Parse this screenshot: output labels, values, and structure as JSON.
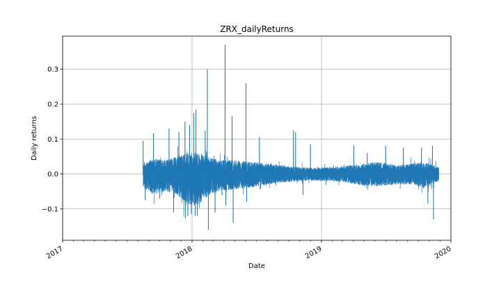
{
  "chart_data": {
    "type": "line",
    "title": "ZRX_dailyReturns",
    "xlabel": "Date",
    "ylabel": "Daily returns",
    "xlim": [
      "2017-01-01",
      "2020-01-01"
    ],
    "ylim": [
      -0.19,
      0.395
    ],
    "x_ticks": [
      "2017",
      "2018",
      "2019",
      "2020"
    ],
    "y_ticks": [
      -0.1,
      0.0,
      0.1,
      0.2,
      0.3
    ],
    "y_tick_labels": [
      "−0.1",
      "0.0",
      "0.1",
      "0.2",
      "0.3"
    ],
    "grid": true,
    "series": [
      {
        "color": "#1f77b4",
        "x_range": [
          "2017-08-16",
          "2019-11-28"
        ],
        "envelope": [
          {
            "x": "2017-08-16",
            "high": 0.03,
            "low": -0.04
          },
          {
            "x": "2017-09-15",
            "high": 0.045,
            "low": -0.06
          },
          {
            "x": "2017-10-20",
            "high": 0.04,
            "low": -0.05
          },
          {
            "x": "2017-11-20",
            "high": 0.05,
            "low": -0.06
          },
          {
            "x": "2017-12-20",
            "high": 0.06,
            "low": -0.09
          },
          {
            "x": "2018-01-20",
            "high": 0.06,
            "low": -0.09
          },
          {
            "x": "2018-02-20",
            "high": 0.05,
            "low": -0.06
          },
          {
            "x": "2018-03-20",
            "high": 0.04,
            "low": -0.05
          },
          {
            "x": "2018-05-01",
            "high": 0.04,
            "low": -0.045
          },
          {
            "x": "2018-06-15",
            "high": 0.035,
            "low": -0.04
          },
          {
            "x": "2018-08-01",
            "high": 0.03,
            "low": -0.03
          },
          {
            "x": "2018-09-15",
            "high": 0.025,
            "low": -0.025
          },
          {
            "x": "2018-11-01",
            "high": 0.02,
            "low": -0.02
          },
          {
            "x": "2018-12-15",
            "high": 0.018,
            "low": -0.02
          },
          {
            "x": "2019-02-01",
            "high": 0.02,
            "low": -0.02
          },
          {
            "x": "2019-03-15",
            "high": 0.025,
            "low": -0.025
          },
          {
            "x": "2019-05-01",
            "high": 0.03,
            "low": -0.035
          },
          {
            "x": "2019-06-15",
            "high": 0.035,
            "low": -0.035
          },
          {
            "x": "2019-08-01",
            "high": 0.025,
            "low": -0.03
          },
          {
            "x": "2019-09-15",
            "high": 0.03,
            "low": -0.03
          },
          {
            "x": "2019-10-15",
            "high": 0.035,
            "low": -0.04
          },
          {
            "x": "2019-11-28",
            "high": 0.02,
            "low": -0.02
          }
        ],
        "spikes": [
          {
            "x": "2017-08-16",
            "y": 0.095
          },
          {
            "x": "2017-08-22",
            "y": -0.075
          },
          {
            "x": "2017-09-14",
            "y": 0.117
          },
          {
            "x": "2017-10-02",
            "y": -0.07
          },
          {
            "x": "2017-10-28",
            "y": 0.13
          },
          {
            "x": "2017-11-10",
            "y": -0.11
          },
          {
            "x": "2017-11-25",
            "y": 0.12
          },
          {
            "x": "2017-12-12",
            "y": 0.15
          },
          {
            "x": "2017-12-20",
            "y": -0.12
          },
          {
            "x": "2017-12-25",
            "y": 0.14
          },
          {
            "x": "2017-12-30",
            "y": -0.115
          },
          {
            "x": "2018-01-06",
            "y": 0.175
          },
          {
            "x": "2018-01-10",
            "y": -0.12
          },
          {
            "x": "2018-01-12",
            "y": 0.185
          },
          {
            "x": "2018-01-16",
            "y": -0.12
          },
          {
            "x": "2018-02-07",
            "y": 0.125
          },
          {
            "x": "2018-02-13",
            "y": 0.3
          },
          {
            "x": "2018-02-16",
            "y": -0.16
          },
          {
            "x": "2018-03-07",
            "y": -0.11
          },
          {
            "x": "2018-04-04",
            "y": 0.37
          },
          {
            "x": "2018-04-06",
            "y": -0.09
          },
          {
            "x": "2018-04-24",
            "y": 0.165
          },
          {
            "x": "2018-04-27",
            "y": -0.14
          },
          {
            "x": "2018-06-02",
            "y": 0.26
          },
          {
            "x": "2018-06-04",
            "y": -0.08
          },
          {
            "x": "2018-07-10",
            "y": 0.105
          },
          {
            "x": "2018-10-14",
            "y": 0.125
          },
          {
            "x": "2018-10-20",
            "y": 0.12
          },
          {
            "x": "2018-11-10",
            "y": -0.06
          },
          {
            "x": "2018-12-01",
            "y": 0.085
          },
          {
            "x": "2019-04-02",
            "y": 0.082
          },
          {
            "x": "2019-05-10",
            "y": 0.06
          },
          {
            "x": "2019-07-01",
            "y": 0.08
          },
          {
            "x": "2019-08-20",
            "y": 0.075
          },
          {
            "x": "2019-10-10",
            "y": 0.075
          },
          {
            "x": "2019-10-28",
            "y": -0.085
          },
          {
            "x": "2019-11-10",
            "y": 0.08
          },
          {
            "x": "2019-11-13",
            "y": -0.13
          }
        ]
      }
    ]
  }
}
